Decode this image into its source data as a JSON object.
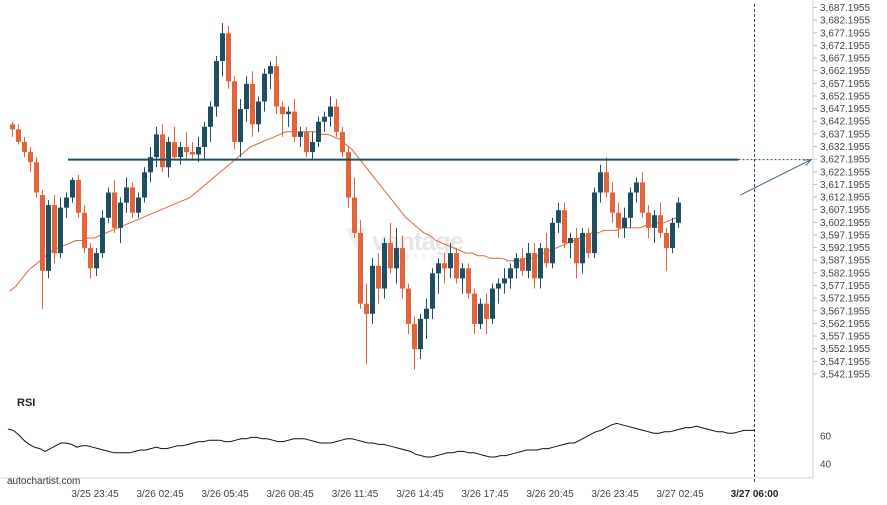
{
  "chart_data": {
    "type": "candlestick",
    "watermark": "vantage",
    "watermark_sub": "MARKETS",
    "brand": "autochartist.com",
    "colors": {
      "up": "#1d4f61",
      "down": "#e2643a",
      "ma": "#e2643a",
      "resistance": "#1d4f61",
      "rsi": "#111111",
      "grid": "#d6d6d6"
    },
    "y_axis": {
      "min": 3540.1955,
      "max": 3688.1955,
      "ticks": [
        "3,687.1955",
        "3,682.1955",
        "3,677.1955",
        "3,672.1955",
        "3,667.1955",
        "3,662.1955",
        "3,657.1955",
        "3,652.1955",
        "3,647.1955",
        "3,642.1955",
        "3,637.1955",
        "3,632.1955",
        "3,627.1955",
        "3,622.1955",
        "3,617.1955",
        "3,612.1955",
        "3,607.1955",
        "3,602.1955",
        "3,597.1955",
        "3,592.1955",
        "3,587.1955",
        "3,582.1955",
        "3,577.1955",
        "3,572.1955",
        "3,567.1955",
        "3,562.1955",
        "3,557.1955",
        "3,552.1955",
        "3,547.1955",
        "3,542.1955"
      ]
    },
    "x_axis": {
      "labels": [
        "3/25 23:45",
        "3/26 02:45",
        "3/26 05:45",
        "3/26 08:45",
        "3/26 11:45",
        "3/26 14:45",
        "3/26 17:45",
        "3/26 20:45",
        "3/26 23:45",
        "3/27 02:45",
        "3/27 06:00"
      ],
      "label_bars": [
        0,
        12,
        24,
        36,
        48,
        60,
        72,
        84,
        96,
        108,
        119
      ],
      "highlight": "3/27 06:00"
    },
    "resistance": {
      "level": 3627.0,
      "start_bar": 1,
      "end_bar": 133
    },
    "projection": {
      "from_bar": 121,
      "from_price": 3613.0,
      "to_bar": 135,
      "to_price": 3627.0
    },
    "candles": [
      [
        3641,
        3642,
        3636,
        3639
      ],
      [
        3639,
        3641,
        3633,
        3634
      ],
      [
        3634,
        3636,
        3628,
        3630
      ],
      [
        3630,
        3632,
        3622,
        3626
      ],
      [
        3626,
        3628,
        3612,
        3614
      ],
      [
        3613,
        3615,
        3568,
        3583
      ],
      [
        3583,
        3611,
        3580,
        3609
      ],
      [
        3609,
        3613,
        3586,
        3590
      ],
      [
        3590,
        3612,
        3588,
        3608
      ],
      [
        3608,
        3614,
        3604,
        3612
      ],
      [
        3612,
        3620,
        3610,
        3619
      ],
      [
        3619,
        3621,
        3604,
        3606
      ],
      [
        3606,
        3609,
        3590,
        3592
      ],
      [
        3592,
        3594,
        3580,
        3584
      ],
      [
        3584,
        3592,
        3581,
        3590
      ],
      [
        3590,
        3607,
        3588,
        3604
      ],
      [
        3604,
        3616,
        3602,
        3614
      ],
      [
        3614,
        3619,
        3598,
        3600
      ],
      [
        3600,
        3612,
        3594,
        3610
      ],
      [
        3610,
        3620,
        3606,
        3616
      ],
      [
        3616,
        3618,
        3604,
        3606
      ],
      [
        3606,
        3614,
        3604,
        3612
      ],
      [
        3612,
        3624,
        3610,
        3622
      ],
      [
        3622,
        3632,
        3618,
        3628
      ],
      [
        3628,
        3640,
        3624,
        3637
      ],
      [
        3637,
        3641,
        3622,
        3624
      ],
      [
        3624,
        3636,
        3620,
        3634
      ],
      [
        3634,
        3640,
        3627,
        3628
      ],
      [
        3628,
        3634,
        3625,
        3632
      ],
      [
        3632,
        3638,
        3627,
        3630
      ],
      [
        3630,
        3634,
        3627,
        3629
      ],
      [
        3629,
        3636,
        3626,
        3632
      ],
      [
        3632,
        3642,
        3627,
        3640
      ],
      [
        3640,
        3650,
        3634,
        3648
      ],
      [
        3648,
        3668,
        3644,
        3666
      ],
      [
        3666,
        3681,
        3660,
        3677
      ],
      [
        3677,
        3680,
        3655,
        3658
      ],
      [
        3658,
        3660,
        3631,
        3634
      ],
      [
        3634,
        3651,
        3628,
        3647
      ],
      [
        3647,
        3660,
        3642,
        3657
      ],
      [
        3657,
        3662,
        3636,
        3641
      ],
      [
        3641,
        3652,
        3638,
        3650
      ],
      [
        3650,
        3663,
        3646,
        3661
      ],
      [
        3661,
        3666,
        3655,
        3664
      ],
      [
        3664,
        3668,
        3645,
        3648
      ],
      [
        3648,
        3650,
        3636,
        3645
      ],
      [
        3645,
        3648,
        3640,
        3646
      ],
      [
        3646,
        3651,
        3634,
        3636
      ],
      [
        3636,
        3640,
        3632,
        3638
      ],
      [
        3638,
        3640,
        3628,
        3630
      ],
      [
        3630,
        3638,
        3627,
        3634
      ],
      [
        3634,
        3644,
        3632,
        3642
      ],
      [
        3642,
        3646,
        3638,
        3644
      ],
      [
        3644,
        3652,
        3640,
        3648
      ],
      [
        3648,
        3651,
        3636,
        3638
      ],
      [
        3638,
        3640,
        3628,
        3630
      ],
      [
        3630,
        3632,
        3608,
        3612
      ],
      [
        3612,
        3620,
        3596,
        3598
      ],
      [
        3598,
        3603,
        3568,
        3570
      ],
      [
        3570,
        3578,
        3546,
        3566
      ],
      [
        3566,
        3588,
        3562,
        3585
      ],
      [
        3585,
        3590,
        3570,
        3576
      ],
      [
        3576,
        3596,
        3572,
        3594
      ],
      [
        3594,
        3602,
        3582,
        3584
      ],
      [
        3584,
        3600,
        3578,
        3592
      ],
      [
        3592,
        3597,
        3572,
        3576
      ],
      [
        3576,
        3578,
        3558,
        3562
      ],
      [
        3562,
        3565,
        3544,
        3552
      ],
      [
        3552,
        3566,
        3548,
        3564
      ],
      [
        3564,
        3572,
        3556,
        3568
      ],
      [
        3568,
        3584,
        3564,
        3582
      ],
      [
        3582,
        3588,
        3574,
        3586
      ],
      [
        3586,
        3590,
        3578,
        3584
      ],
      [
        3584,
        3594,
        3580,
        3590
      ],
      [
        3590,
        3592,
        3578,
        3580
      ],
      [
        3580,
        3586,
        3574,
        3584
      ],
      [
        3584,
        3586,
        3572,
        3574
      ],
      [
        3574,
        3576,
        3558,
        3562
      ],
      [
        3562,
        3572,
        3560,
        3570
      ],
      [
        3570,
        3574,
        3558,
        3564
      ],
      [
        3564,
        3578,
        3562,
        3576
      ],
      [
        3576,
        3580,
        3570,
        3578
      ],
      [
        3578,
        3584,
        3574,
        3580
      ],
      [
        3580,
        3586,
        3576,
        3584
      ],
      [
        3584,
        3590,
        3580,
        3588
      ],
      [
        3588,
        3592,
        3581,
        3583
      ],
      [
        3583,
        3594,
        3580,
        3590
      ],
      [
        3590,
        3594,
        3576,
        3580
      ],
      [
        3580,
        3594,
        3576,
        3592
      ],
      [
        3592,
        3598,
        3584,
        3586
      ],
      [
        3586,
        3604,
        3584,
        3602
      ],
      [
        3602,
        3610,
        3598,
        3607
      ],
      [
        3607,
        3610,
        3592,
        3594
      ],
      [
        3594,
        3598,
        3588,
        3596
      ],
      [
        3596,
        3600,
        3580,
        3586
      ],
      [
        3586,
        3600,
        3582,
        3598
      ],
      [
        3598,
        3600,
        3588,
        3590
      ],
      [
        3590,
        3616,
        3588,
        3614
      ],
      [
        3614,
        3625,
        3610,
        3622
      ],
      [
        3622,
        3628,
        3612,
        3614
      ],
      [
        3614,
        3618,
        3602,
        3606
      ],
      [
        3606,
        3610,
        3596,
        3600
      ],
      [
        3600,
        3608,
        3596,
        3604
      ],
      [
        3604,
        3616,
        3600,
        3614
      ],
      [
        3614,
        3620,
        3610,
        3618
      ],
      [
        3618,
        3622,
        3604,
        3606
      ],
      [
        3606,
        3609,
        3596,
        3600
      ],
      [
        3600,
        3607,
        3594,
        3605
      ],
      [
        3605,
        3610,
        3596,
        3598
      ],
      [
        3598,
        3600,
        3583,
        3592
      ],
      [
        3592,
        3604,
        3590,
        3602
      ],
      [
        3602,
        3612,
        3600,
        3610
      ]
    ],
    "ma": [
      3575,
      3577,
      3580,
      3583,
      3585,
      3587,
      3589,
      3591,
      3592,
      3593,
      3594,
      3595,
      3595,
      3596,
      3596,
      3597,
      3598,
      3599,
      3600,
      3601,
      3602,
      3603,
      3604,
      3605,
      3606,
      3607,
      3608,
      3609,
      3610,
      3611,
      3612,
      3614,
      3616,
      3618,
      3620,
      3622,
      3624,
      3626,
      3628,
      3630,
      3632,
      3633,
      3634,
      3635,
      3636,
      3637,
      3638,
      3638,
      3638,
      3638,
      3638,
      3638,
      3637,
      3637,
      3636,
      3635,
      3633,
      3631,
      3628,
      3625,
      3622,
      3619,
      3616,
      3613,
      3610,
      3607,
      3604,
      3602,
      3600,
      3598,
      3597,
      3595,
      3594,
      3593,
      3592,
      3591,
      3590,
      3590,
      3589,
      3589,
      3588,
      3588,
      3588,
      3587,
      3587,
      3587,
      3588,
      3588,
      3589,
      3590,
      3591,
      3592,
      3593,
      3594,
      3595,
      3596,
      3597,
      3598,
      3598,
      3599,
      3599,
      3599,
      3600,
      3600,
      3600,
      3600,
      3601,
      3601,
      3602,
      3602,
      3603,
      3604
    ],
    "rsi": {
      "label": "RSI",
      "ticks": [
        "60",
        "40"
      ],
      "min": 30,
      "max": 80,
      "values": [
        65,
        64,
        61,
        57,
        54,
        52,
        51,
        49,
        51,
        53,
        55,
        55,
        54,
        52,
        53,
        53,
        52,
        51,
        50,
        49,
        48,
        48,
        48,
        48,
        49,
        50,
        50,
        51,
        52,
        51,
        51,
        52,
        53,
        53,
        54,
        55,
        56,
        56,
        57,
        57,
        57,
        56,
        56,
        57,
        58,
        58,
        59,
        59,
        58,
        58,
        57,
        56,
        56,
        57,
        58,
        58,
        58,
        57,
        56,
        55,
        55,
        55,
        56,
        57,
        58,
        58,
        57,
        56,
        55,
        55,
        54,
        54,
        53,
        52,
        51,
        50,
        49,
        47,
        46,
        45,
        45,
        46,
        47,
        48,
        48,
        49,
        49,
        48,
        48,
        47,
        46,
        45,
        45,
        46,
        46,
        47,
        48,
        49,
        50,
        50,
        50,
        51,
        51,
        52,
        53,
        54,
        55,
        55,
        57,
        59,
        61,
        63,
        64,
        66,
        68,
        69,
        68,
        67,
        66,
        65,
        64,
        63,
        62,
        62,
        63,
        63,
        64,
        65,
        66,
        66,
        67,
        66,
        65,
        64,
        63,
        63,
        62,
        62,
        63,
        64,
        64,
        64
      ]
    }
  }
}
